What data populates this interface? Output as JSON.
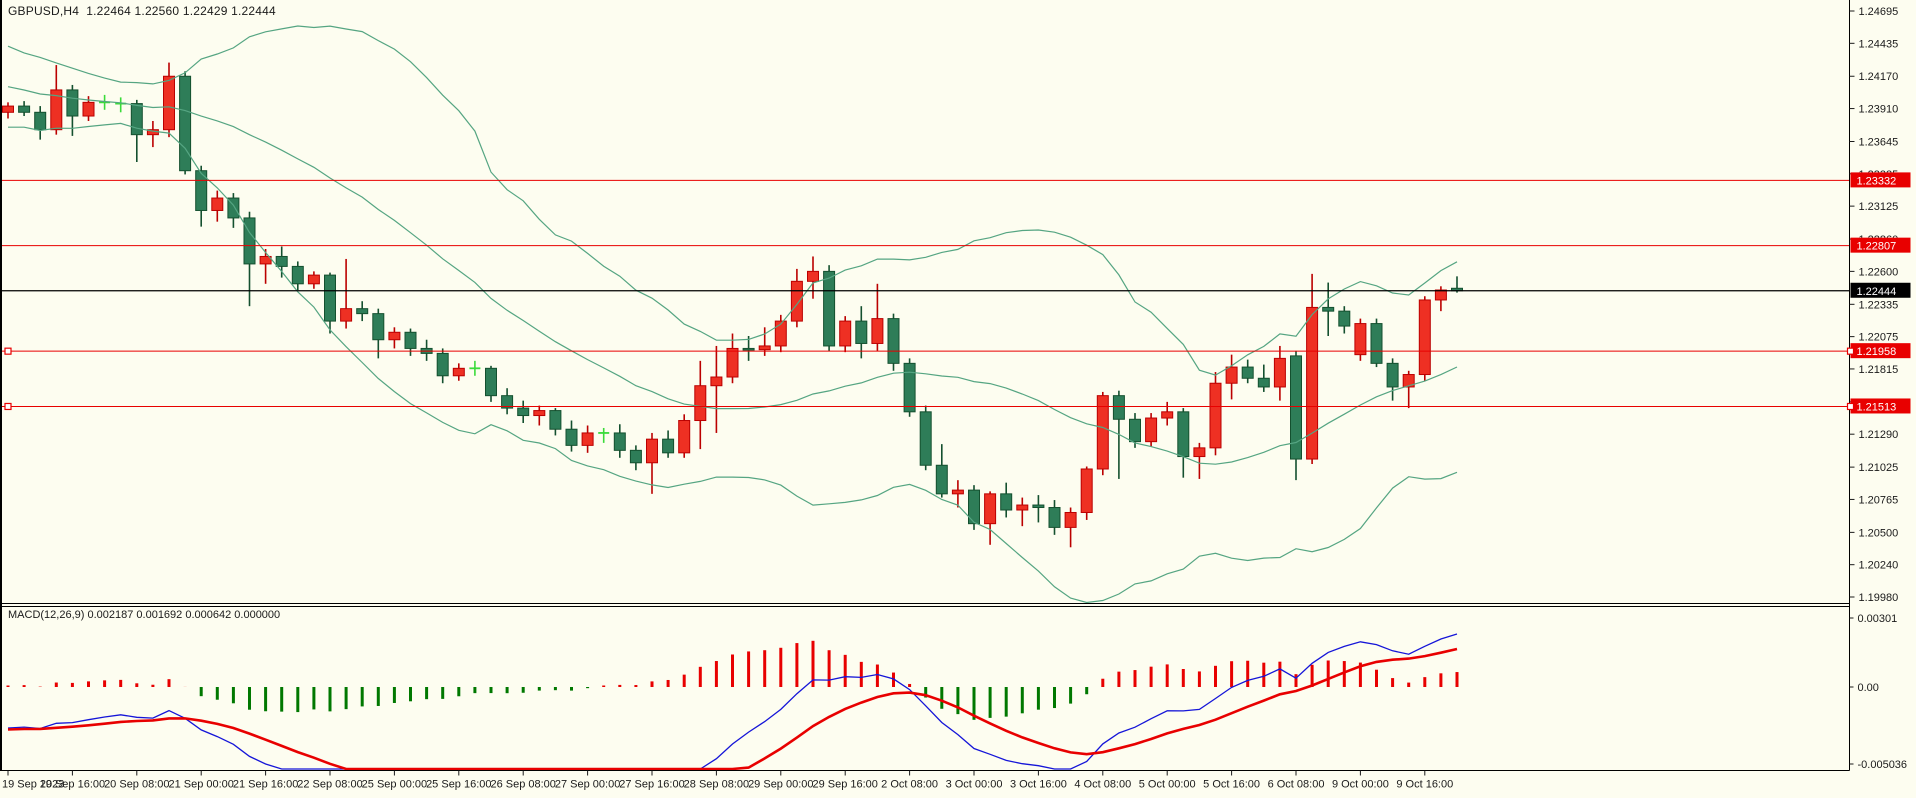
{
  "window": {
    "symbol_period": "GBPUSD,H4",
    "ohlc_values": "1.22464 1.22560 1.22429 1.22444",
    "title": "GBPUSD,H4  1.22464 1.22560 1.22429 1.22444"
  },
  "colors": {
    "background": "#FDFDF0",
    "bull_candle": "#EE3023",
    "bull_border": "#BB0000",
    "bear_candle": "#2E7D58",
    "bear_border": "#14502F",
    "doji": "#3ADB3A",
    "bollinger": "#55A582",
    "hline_red": "#E80000",
    "current_price_line": "#000000",
    "price_plate_red_bg": "#E80000",
    "price_plate_black_bg": "#000000",
    "plate_text": "#FFFFFF",
    "macd_hist_positive": "#E80000",
    "macd_hist_negative": "#007800",
    "macd_line": "#1515D8",
    "signal_line": "#E80000",
    "axis_text": "#1a1a1a",
    "border": "#000000"
  },
  "price_axis": {
    "labels": [
      "1.24695",
      "1.24435",
      "1.24170",
      "1.23910",
      "1.23645",
      "1.23385",
      "1.23125",
      "1.22860",
      "1.22600",
      "1.22335",
      "1.22075",
      "1.21815",
      "1.21550",
      "1.21290",
      "1.21025",
      "1.20765",
      "1.20500",
      "1.20240",
      "1.19980"
    ],
    "values": [
      1.24695,
      1.24435,
      1.2417,
      1.2391,
      1.23645,
      1.23385,
      1.23125,
      1.2286,
      1.226,
      1.22335,
      1.22075,
      1.21815,
      1.2155,
      1.2129,
      1.21025,
      1.20765,
      1.205,
      1.2024,
      1.1998
    ]
  },
  "price_lines": {
    "horizontal_red": [
      {
        "price": 1.23332,
        "label": "1.23332",
        "handle": false
      },
      {
        "price": 1.22807,
        "label": "1.22807",
        "handle": false
      },
      {
        "price": 1.21958,
        "label": "1.21958",
        "handle": true
      },
      {
        "price": 1.21513,
        "label": "1.21513",
        "handle": true
      }
    ],
    "current": {
      "price": 1.22444,
      "label": "1.22444"
    }
  },
  "chart_data": {
    "type": "candlestick",
    "symbol": "GBPUSD",
    "timeframe": "H4",
    "title": "GBPUSD,H4  1.22464 1.22560 1.22429 1.22444",
    "current_bar_ohlc": {
      "open": 1.22464,
      "high": 1.2256,
      "low": 1.22429,
      "close": 1.22444
    },
    "ylim": [
      1.1998,
      1.24695
    ],
    "grid": false,
    "x_labels": [
      "19 Sep 2023",
      "19 Sep 16:00",
      "20 Sep 08:00",
      "21 Sep 00:00",
      "21 Sep 16:00",
      "22 Sep 08:00",
      "25 Sep 00:00",
      "25 Sep 16:00",
      "26 Sep 08:00",
      "27 Sep 00:00",
      "27 Sep 16:00",
      "28 Sep 08:00",
      "29 Sep 00:00",
      "29 Sep 16:00",
      "2 Oct 08:00",
      "3 Oct 00:00",
      "3 Oct 16:00",
      "4 Oct 08:00",
      "5 Oct 00:00",
      "5 Oct 16:00",
      "6 Oct 08:00",
      "9 Oct 00:00",
      "9 Oct 16:00"
    ],
    "bars_per_x_label": 4,
    "candles_ohlc": [
      [
        1.2388,
        1.2396,
        1.2383,
        1.2393
      ],
      [
        1.2393,
        1.2397,
        1.2385,
        1.2388
      ],
      [
        1.2388,
        1.2393,
        1.2366,
        1.2374
      ],
      [
        1.2374,
        1.2426,
        1.237,
        1.2406
      ],
      [
        1.2406,
        1.241,
        1.2369,
        1.2385
      ],
      [
        1.2385,
        1.2401,
        1.2381,
        1.2396
      ],
      [
        1.2396,
        1.2402,
        1.239,
        1.2396
      ],
      [
        1.2395,
        1.24,
        1.2388,
        1.2395
      ],
      [
        1.2395,
        1.2398,
        1.2348,
        1.237
      ],
      [
        1.237,
        1.2381,
        1.236,
        1.2374
      ],
      [
        1.2374,
        1.2428,
        1.2368,
        1.2417
      ],
      [
        1.2417,
        1.2421,
        1.2338,
        1.2341
      ],
      [
        1.2341,
        1.2345,
        1.2296,
        1.2309
      ],
      [
        1.2309,
        1.2325,
        1.23,
        1.2319
      ],
      [
        1.2319,
        1.2323,
        1.2295,
        1.2303
      ],
      [
        1.2303,
        1.2308,
        1.2232,
        1.2266
      ],
      [
        1.2266,
        1.2278,
        1.225,
        1.2272
      ],
      [
        1.2272,
        1.228,
        1.2255,
        1.2264
      ],
      [
        1.2264,
        1.2268,
        1.2245,
        1.225
      ],
      [
        1.225,
        1.226,
        1.2246,
        1.2257
      ],
      [
        1.2257,
        1.2259,
        1.221,
        1.222
      ],
      [
        1.222,
        1.227,
        1.2214,
        1.223
      ],
      [
        1.223,
        1.2236,
        1.222,
        1.2226
      ],
      [
        1.2226,
        1.223,
        1.219,
        1.2205
      ],
      [
        1.2205,
        1.2215,
        1.2198,
        1.2211
      ],
      [
        1.2211,
        1.2214,
        1.2192,
        1.2198
      ],
      [
        1.2198,
        1.2205,
        1.2188,
        1.2194
      ],
      [
        1.2194,
        1.2198,
        1.217,
        1.2176
      ],
      [
        1.2176,
        1.2186,
        1.2172,
        1.2182
      ],
      [
        1.2182,
        1.2188,
        1.2176,
        1.2182
      ],
      [
        1.2182,
        1.2184,
        1.2155,
        1.216
      ],
      [
        1.216,
        1.2166,
        1.2145,
        1.215
      ],
      [
        1.215,
        1.2156,
        1.2138,
        1.2144
      ],
      [
        1.2144,
        1.2152,
        1.2136,
        1.2148
      ],
      [
        1.2148,
        1.215,
        1.2128,
        1.2133
      ],
      [
        1.2133,
        1.214,
        1.2115,
        1.212
      ],
      [
        1.212,
        1.2136,
        1.2114,
        1.213
      ],
      [
        1.213,
        1.2134,
        1.2122,
        1.213
      ],
      [
        1.213,
        1.2137,
        1.211,
        1.2116
      ],
      [
        1.2116,
        1.212,
        1.21,
        1.2106
      ],
      [
        1.2106,
        1.213,
        1.2081,
        1.2125
      ],
      [
        1.2125,
        1.2132,
        1.211,
        1.2114
      ],
      [
        1.2114,
        1.2145,
        1.211,
        1.214
      ],
      [
        1.214,
        1.2188,
        1.2117,
        1.2168
      ],
      [
        1.2168,
        1.22,
        1.213,
        1.2175
      ],
      [
        1.2175,
        1.221,
        1.217,
        1.2198
      ],
      [
        1.2198,
        1.2208,
        1.2188,
        1.2197
      ],
      [
        1.2197,
        1.2215,
        1.2192,
        1.22
      ],
      [
        1.22,
        1.2225,
        1.2195,
        1.222
      ],
      [
        1.222,
        1.2262,
        1.2215,
        1.2252
      ],
      [
        1.2252,
        1.2272,
        1.2238,
        1.226
      ],
      [
        1.226,
        1.2265,
        1.2196,
        1.22
      ],
      [
        1.22,
        1.2224,
        1.2195,
        1.222
      ],
      [
        1.222,
        1.2232,
        1.219,
        1.2202
      ],
      [
        1.2202,
        1.225,
        1.2196,
        1.2222
      ],
      [
        1.2222,
        1.2226,
        1.218,
        1.2186
      ],
      [
        1.2186,
        1.219,
        1.2143,
        1.2147
      ],
      [
        1.2147,
        1.2152,
        1.21,
        1.2104
      ],
      [
        1.2104,
        1.2121,
        1.2078,
        1.2081
      ],
      [
        1.2081,
        1.2092,
        1.207,
        1.2084
      ],
      [
        1.2084,
        1.2088,
        1.2052,
        1.2057
      ],
      [
        1.2057,
        1.2083,
        1.204,
        1.2081
      ],
      [
        1.2081,
        1.209,
        1.2062,
        1.2068
      ],
      [
        1.2068,
        1.2078,
        1.2055,
        1.2072
      ],
      [
        1.2072,
        1.208,
        1.2058,
        1.207
      ],
      [
        1.207,
        1.2076,
        1.2048,
        1.2054
      ],
      [
        1.2054,
        1.207,
        1.2038,
        1.2066
      ],
      [
        1.2066,
        1.2103,
        1.206,
        1.2101
      ],
      [
        1.2101,
        1.2163,
        1.2096,
        1.216
      ],
      [
        1.216,
        1.2164,
        1.2093,
        1.2141
      ],
      [
        1.2141,
        1.2146,
        1.2118,
        1.2123
      ],
      [
        1.2123,
        1.2146,
        1.2119,
        1.2142
      ],
      [
        1.2142,
        1.2155,
        1.2136,
        1.2147
      ],
      [
        1.2147,
        1.215,
        1.2094,
        1.2111
      ],
      [
        1.2111,
        1.2122,
        1.2093,
        1.2118
      ],
      [
        1.2118,
        1.2179,
        1.2112,
        1.217
      ],
      [
        1.217,
        1.2193,
        1.2157,
        1.2183
      ],
      [
        1.2183,
        1.2189,
        1.217,
        1.2174
      ],
      [
        1.2174,
        1.2185,
        1.2163,
        1.2167
      ],
      [
        1.2167,
        1.22,
        1.2156,
        1.219
      ],
      [
        1.2192,
        1.2196,
        1.2092,
        1.2109
      ],
      [
        1.2109,
        1.2258,
        1.2105,
        1.2231
      ],
      [
        1.2231,
        1.2251,
        1.2208,
        1.2228
      ],
      [
        1.2228,
        1.2232,
        1.221,
        1.2216
      ],
      [
        1.2193,
        1.2222,
        1.2188,
        1.2218
      ],
      [
        1.2218,
        1.2222,
        1.2183,
        1.2186
      ],
      [
        1.2186,
        1.219,
        1.2156,
        1.2167
      ],
      [
        1.2167,
        1.218,
        1.215,
        1.2177
      ],
      [
        1.2177,
        1.224,
        1.2172,
        1.2237
      ],
      [
        1.2237,
        1.2248,
        1.2228,
        1.2245
      ],
      [
        1.22464,
        1.2256,
        1.22429,
        1.22444
      ]
    ],
    "pre_history_closes": [
      1.2482,
      1.2476,
      1.247,
      1.2464,
      1.2458,
      1.2452,
      1.2447,
      1.2442,
      1.2437,
      1.2432,
      1.2428,
      1.2424,
      1.242,
      1.2416,
      1.2412,
      1.2408,
      1.2405,
      1.2402,
      1.2399,
      1.2396,
      1.2394,
      1.2396,
      1.2392,
      1.2394,
      1.239,
      1.2392
    ],
    "overlays": {
      "bollinger_bands": {
        "period": 20,
        "deviation": 2,
        "applied_to": "close"
      }
    },
    "sub_chart": {
      "type": "macd",
      "label_line": "MACD(12,26,9) 0.002187 0.001692 0.000642 0.000000",
      "name": "MACD",
      "parameters": [
        12,
        26,
        9
      ],
      "current_values": [
        "0.002187",
        "0.001692",
        "0.000642",
        "0.000000"
      ],
      "y_axis_labels": [
        "0.00301",
        "0.00",
        "-0.005036"
      ],
      "histogram": "macd_minus_signal"
    }
  }
}
